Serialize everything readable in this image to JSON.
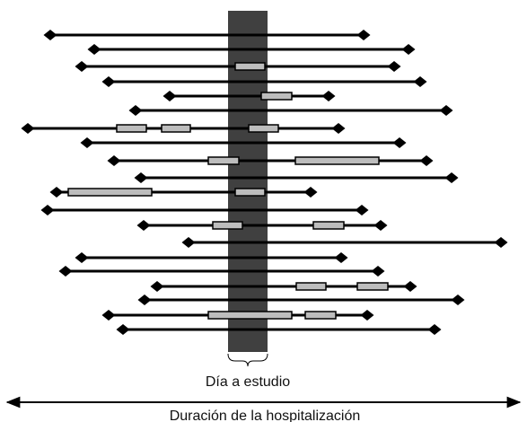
{
  "diagram": {
    "study_day_label": "Día a estudio",
    "duration_label": "Duración de la hospitalización",
    "colors": {
      "line": "#000000",
      "study_band": "#404040",
      "episode_fill": "#bdbdbd",
      "background": "#ffffff"
    },
    "stays": [
      {
        "id": "stay-1",
        "episodes": 0
      },
      {
        "id": "stay-2",
        "episodes": 0
      },
      {
        "id": "stay-3",
        "episodes": 1
      },
      {
        "id": "stay-4",
        "episodes": 0
      },
      {
        "id": "stay-5",
        "episodes": 1
      },
      {
        "id": "stay-6",
        "episodes": 0
      },
      {
        "id": "stay-7",
        "episodes": 3
      },
      {
        "id": "stay-8",
        "episodes": 0
      },
      {
        "id": "stay-9",
        "episodes": 2
      },
      {
        "id": "stay-10",
        "episodes": 0
      },
      {
        "id": "stay-11",
        "episodes": 2
      },
      {
        "id": "stay-12",
        "episodes": 0
      },
      {
        "id": "stay-13",
        "episodes": 2
      },
      {
        "id": "stay-14",
        "episodes": 0
      },
      {
        "id": "stay-15",
        "episodes": 0
      },
      {
        "id": "stay-16",
        "episodes": 0
      },
      {
        "id": "stay-17",
        "episodes": 2
      },
      {
        "id": "stay-18",
        "episodes": 0
      },
      {
        "id": "stay-19",
        "episodes": 2
      },
      {
        "id": "stay-20",
        "episodes": 0
      }
    ]
  }
}
